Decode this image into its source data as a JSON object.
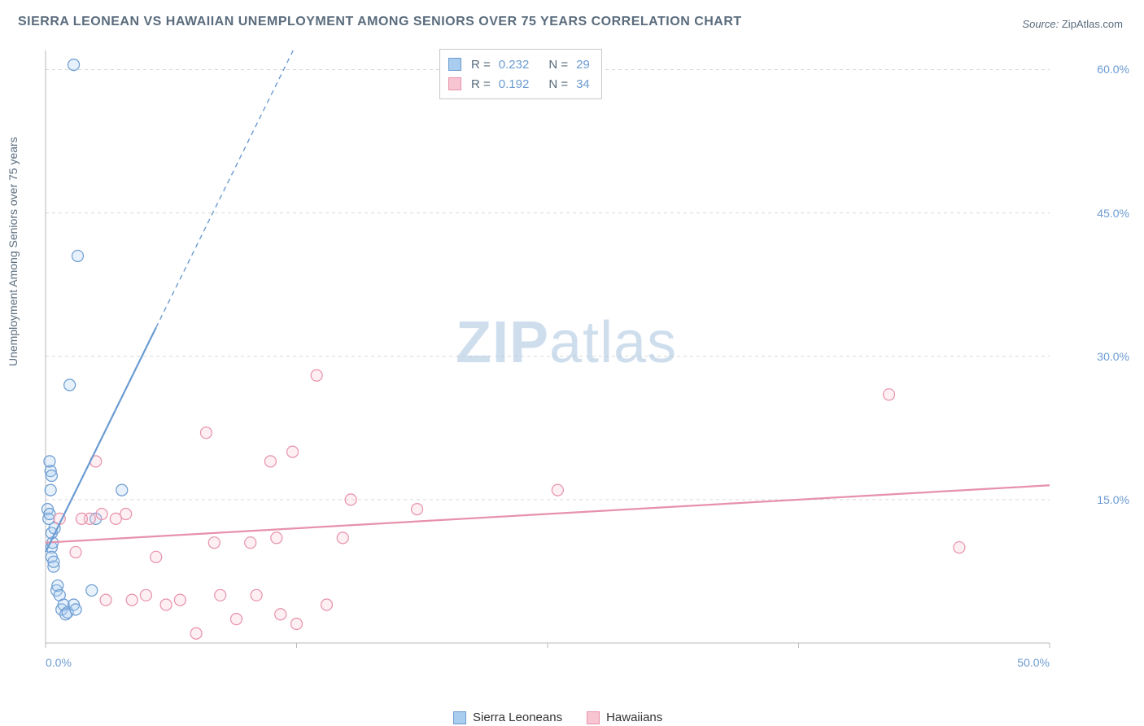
{
  "title": "SIERRA LEONEAN VS HAWAIIAN UNEMPLOYMENT AMONG SENIORS OVER 75 YEARS CORRELATION CHART",
  "source_label": "Source:",
  "source_value": "ZipAtlas.com",
  "watermark_zip": "ZIP",
  "watermark_atlas": "atlas",
  "chart": {
    "type": "scatter",
    "background_color": "#ffffff",
    "grid_color": "#d9d9d9",
    "axis_color": "#b8b8b8",
    "axis_label_color": "#5a6c7d",
    "tick_label_color": "#6b9bd1",
    "ylabel": "Unemployment Among Seniors over 75 years",
    "xlim": [
      0,
      50
    ],
    "ylim": [
      0,
      62
    ],
    "ytick_values": [
      15,
      30,
      45,
      60
    ],
    "ytick_labels": [
      "15.0%",
      "30.0%",
      "45.0%",
      "60.0%"
    ],
    "xtick_values": [
      0,
      12.5,
      25,
      37.5,
      50
    ],
    "xtick_labels_shown": {
      "first": "0.0%",
      "last": "50.0%"
    },
    "marker_radius": 7,
    "marker_stroke_width": 1.2,
    "marker_fill_opacity": 0.28,
    "trend_line_width": 2.2,
    "dash_pattern": "6 5",
    "series": [
      {
        "name": "Sierra Leoneans",
        "color_stroke": "#6b9bd1",
        "color_fill": "#a8cdef",
        "R": "0.232",
        "N": "29",
        "trend": {
          "x1": 0,
          "y1": 9.5,
          "x2": 5.5,
          "y2": 33,
          "x2_dash": 12.8,
          "y2_dash": 64
        },
        "points": [
          [
            0.1,
            14
          ],
          [
            0.15,
            13
          ],
          [
            0.2,
            13.5
          ],
          [
            0.25,
            16
          ],
          [
            0.3,
            10
          ],
          [
            0.35,
            10.5
          ],
          [
            0.3,
            9
          ],
          [
            0.4,
            8
          ],
          [
            0.3,
            11.5
          ],
          [
            0.45,
            12
          ],
          [
            0.25,
            18
          ],
          [
            0.3,
            17.5
          ],
          [
            0.4,
            8.5
          ],
          [
            0.55,
            5.5
          ],
          [
            0.6,
            6
          ],
          [
            0.7,
            5
          ],
          [
            0.8,
            3.5
          ],
          [
            0.9,
            4
          ],
          [
            1.0,
            3
          ],
          [
            1.1,
            3.2
          ],
          [
            1.4,
            4
          ],
          [
            1.5,
            3.5
          ],
          [
            2.3,
            5.5
          ],
          [
            2.5,
            13
          ],
          [
            3.8,
            16
          ],
          [
            1.2,
            27
          ],
          [
            1.6,
            40.5
          ],
          [
            1.4,
            60.5
          ],
          [
            0.2,
            19
          ]
        ]
      },
      {
        "name": "Hawaiians",
        "color_stroke": "#e791ab",
        "color_fill": "#f7c4d2",
        "R": "0.192",
        "N": "34",
        "trend": {
          "x1": 0,
          "y1": 10.5,
          "x2": 50,
          "y2": 16.5
        },
        "points": [
          [
            0.7,
            13
          ],
          [
            1.5,
            9.5
          ],
          [
            2.2,
            13
          ],
          [
            2.5,
            19
          ],
          [
            2.8,
            13.5
          ],
          [
            3.5,
            13
          ],
          [
            4.3,
            4.5
          ],
          [
            5.0,
            5
          ],
          [
            5.5,
            9
          ],
          [
            6.0,
            4
          ],
          [
            6.7,
            4.5
          ],
          [
            7.5,
            1
          ],
          [
            8.0,
            22
          ],
          [
            8.4,
            10.5
          ],
          [
            8.7,
            5
          ],
          [
            9.5,
            2.5
          ],
          [
            10.2,
            10.5
          ],
          [
            10.5,
            5
          ],
          [
            11.2,
            19
          ],
          [
            11.5,
            11
          ],
          [
            11.7,
            3
          ],
          [
            12.3,
            20
          ],
          [
            12.5,
            2
          ],
          [
            13.5,
            28
          ],
          [
            14.0,
            4
          ],
          [
            14.8,
            11
          ],
          [
            15.2,
            15
          ],
          [
            18.5,
            14
          ],
          [
            25.5,
            16
          ],
          [
            42.0,
            26
          ],
          [
            45.5,
            10
          ],
          [
            4.0,
            13.5
          ],
          [
            1.8,
            13
          ],
          [
            3.0,
            4.5
          ]
        ]
      }
    ]
  },
  "stat_legend_labels": {
    "R": "R =",
    "N": "N ="
  }
}
